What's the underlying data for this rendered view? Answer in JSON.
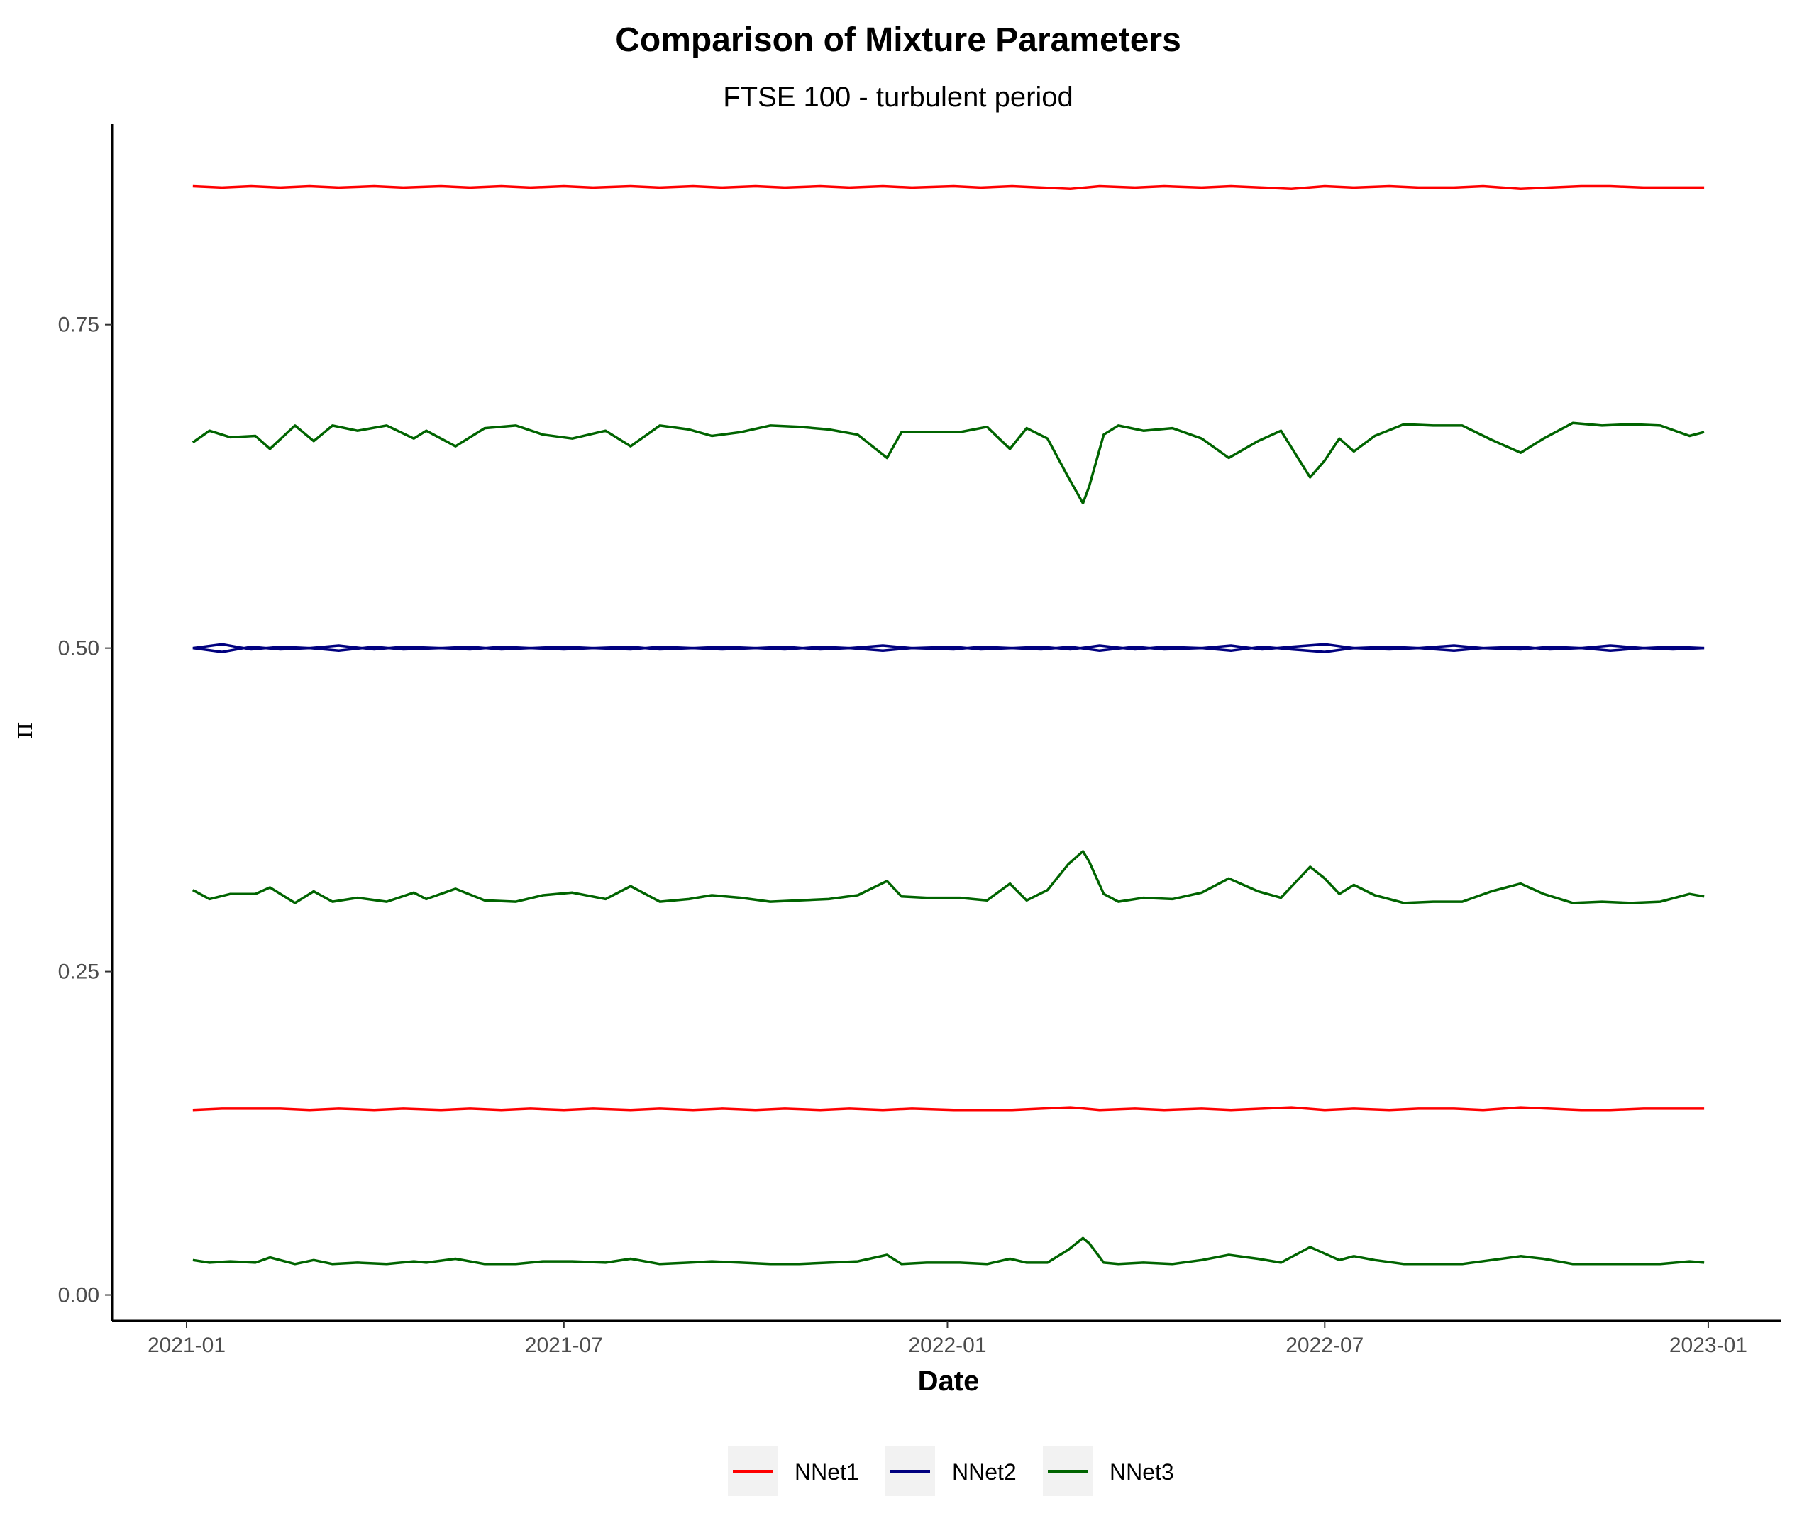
{
  "chart_data": {
    "type": "line",
    "title": "Comparison of Mixture Parameters",
    "subtitle": "FTSE 100 - turbulent period",
    "xlabel": "Date",
    "ylabel": "π",
    "xlim": [
      "2021-01-01",
      "2022-12-31"
    ],
    "ylim": [
      -0.02,
      0.905
    ],
    "x_ticks": [
      "2021-01",
      "2021-07",
      "2022-01",
      "2022-07",
      "2023-01"
    ],
    "y_ticks": [
      "0.00",
      "0.25",
      "0.50",
      "0.75"
    ],
    "grid": false,
    "legend_position": "bottom",
    "colors": {
      "NNet1": "#ff0000",
      "NNet2": "#00007f",
      "NNet3": "#006400"
    },
    "series": [
      {
        "name": "NNet1",
        "component": "upper",
        "x": [
          "2021-01-04",
          "2021-01-18",
          "2021-02-01",
          "2021-02-15",
          "2021-03-01",
          "2021-03-15",
          "2021-04-01",
          "2021-04-15",
          "2021-05-03",
          "2021-05-17",
          "2021-06-01",
          "2021-06-15",
          "2021-07-01",
          "2021-07-15",
          "2021-08-02",
          "2021-08-16",
          "2021-09-01",
          "2021-09-15",
          "2021-10-01",
          "2021-10-15",
          "2021-11-01",
          "2021-11-15",
          "2021-12-01",
          "2021-12-15",
          "2022-01-04",
          "2022-01-17",
          "2022-02-01",
          "2022-02-15",
          "2022-03-01",
          "2022-03-15",
          "2022-04-01",
          "2022-04-15",
          "2022-05-03",
          "2022-05-17",
          "2022-06-01",
          "2022-06-15",
          "2022-07-01",
          "2022-07-15",
          "2022-08-01",
          "2022-08-15",
          "2022-09-01",
          "2022-09-15",
          "2022-10-03",
          "2022-10-17",
          "2022-11-01",
          "2022-11-15",
          "2022-12-01",
          "2022-12-15",
          "2022-12-30"
        ],
        "y": [
          0.857,
          0.856,
          0.857,
          0.856,
          0.857,
          0.856,
          0.857,
          0.856,
          0.857,
          0.856,
          0.857,
          0.856,
          0.857,
          0.856,
          0.857,
          0.856,
          0.857,
          0.856,
          0.857,
          0.856,
          0.857,
          0.856,
          0.857,
          0.856,
          0.857,
          0.856,
          0.857,
          0.856,
          0.855,
          0.857,
          0.856,
          0.857,
          0.856,
          0.857,
          0.856,
          0.855,
          0.857,
          0.856,
          0.857,
          0.856,
          0.856,
          0.857,
          0.855,
          0.856,
          0.857,
          0.857,
          0.856,
          0.856,
          0.856
        ]
      },
      {
        "name": "NNet1",
        "component": "lower",
        "x": [
          "2021-01-04",
          "2021-01-18",
          "2021-02-01",
          "2021-02-15",
          "2021-03-01",
          "2021-03-15",
          "2021-04-01",
          "2021-04-15",
          "2021-05-03",
          "2021-05-17",
          "2021-06-01",
          "2021-06-15",
          "2021-07-01",
          "2021-07-15",
          "2021-08-02",
          "2021-08-16",
          "2021-09-01",
          "2021-09-15",
          "2021-10-01",
          "2021-10-15",
          "2021-11-01",
          "2021-11-15",
          "2021-12-01",
          "2021-12-15",
          "2022-01-04",
          "2022-01-17",
          "2022-02-01",
          "2022-02-15",
          "2022-03-01",
          "2022-03-15",
          "2022-04-01",
          "2022-04-15",
          "2022-05-03",
          "2022-05-17",
          "2022-06-01",
          "2022-06-15",
          "2022-07-01",
          "2022-07-15",
          "2022-08-01",
          "2022-08-15",
          "2022-09-01",
          "2022-09-15",
          "2022-10-03",
          "2022-10-17",
          "2022-11-01",
          "2022-11-15",
          "2022-12-01",
          "2022-12-15",
          "2022-12-30"
        ],
        "y": [
          0.143,
          0.144,
          0.144,
          0.144,
          0.143,
          0.144,
          0.143,
          0.144,
          0.143,
          0.144,
          0.143,
          0.144,
          0.143,
          0.144,
          0.143,
          0.144,
          0.143,
          0.144,
          0.143,
          0.144,
          0.143,
          0.144,
          0.143,
          0.144,
          0.143,
          0.143,
          0.143,
          0.144,
          0.145,
          0.143,
          0.144,
          0.143,
          0.144,
          0.143,
          0.144,
          0.145,
          0.143,
          0.144,
          0.143,
          0.144,
          0.144,
          0.143,
          0.145,
          0.144,
          0.143,
          0.143,
          0.144,
          0.144,
          0.144
        ]
      },
      {
        "name": "NNet2",
        "component": "a",
        "x": [
          "2021-01-04",
          "2021-01-18",
          "2021-02-01",
          "2021-02-15",
          "2021-03-01",
          "2021-03-15",
          "2021-04-01",
          "2021-04-15",
          "2021-05-03",
          "2021-05-17",
          "2021-06-01",
          "2021-06-15",
          "2021-07-01",
          "2021-07-15",
          "2021-08-02",
          "2021-08-16",
          "2021-09-01",
          "2021-09-15",
          "2021-10-01",
          "2021-10-15",
          "2021-11-01",
          "2021-11-15",
          "2021-12-01",
          "2021-12-15",
          "2022-01-04",
          "2022-01-17",
          "2022-02-01",
          "2022-02-15",
          "2022-03-01",
          "2022-03-15",
          "2022-04-01",
          "2022-04-15",
          "2022-05-03",
          "2022-05-17",
          "2022-06-01",
          "2022-06-15",
          "2022-07-01",
          "2022-07-15",
          "2022-08-01",
          "2022-08-15",
          "2022-09-01",
          "2022-09-15",
          "2022-10-03",
          "2022-10-17",
          "2022-11-01",
          "2022-11-15",
          "2022-12-01",
          "2022-12-15",
          "2022-12-30"
        ],
        "y": [
          0.5,
          0.503,
          0.499,
          0.501,
          0.5,
          0.502,
          0.499,
          0.501,
          0.5,
          0.501,
          0.499,
          0.5,
          0.501,
          0.5,
          0.499,
          0.501,
          0.5,
          0.501,
          0.5,
          0.499,
          0.501,
          0.5,
          0.502,
          0.5,
          0.501,
          0.499,
          0.5,
          0.501,
          0.499,
          0.502,
          0.499,
          0.501,
          0.5,
          0.502,
          0.499,
          0.501,
          0.503,
          0.5,
          0.501,
          0.5,
          0.502,
          0.5,
          0.499,
          0.501,
          0.5,
          0.502,
          0.5,
          0.501,
          0.5
        ]
      },
      {
        "name": "NNet2",
        "component": "b",
        "x": [
          "2021-01-04",
          "2021-01-18",
          "2021-02-01",
          "2021-02-15",
          "2021-03-01",
          "2021-03-15",
          "2021-04-01",
          "2021-04-15",
          "2021-05-03",
          "2021-05-17",
          "2021-06-01",
          "2021-06-15",
          "2021-07-01",
          "2021-07-15",
          "2021-08-02",
          "2021-08-16",
          "2021-09-01",
          "2021-09-15",
          "2021-10-01",
          "2021-10-15",
          "2021-11-01",
          "2021-11-15",
          "2021-12-01",
          "2021-12-15",
          "2022-01-04",
          "2022-01-17",
          "2022-02-01",
          "2022-02-15",
          "2022-03-01",
          "2022-03-15",
          "2022-04-01",
          "2022-04-15",
          "2022-05-03",
          "2022-05-17",
          "2022-06-01",
          "2022-06-15",
          "2022-07-01",
          "2022-07-15",
          "2022-08-01",
          "2022-08-15",
          "2022-09-01",
          "2022-09-15",
          "2022-10-03",
          "2022-10-17",
          "2022-11-01",
          "2022-11-15",
          "2022-12-01",
          "2022-12-15",
          "2022-12-30"
        ],
        "y": [
          0.5,
          0.497,
          0.501,
          0.499,
          0.5,
          0.498,
          0.501,
          0.499,
          0.5,
          0.499,
          0.501,
          0.5,
          0.499,
          0.5,
          0.501,
          0.499,
          0.5,
          0.499,
          0.5,
          0.501,
          0.499,
          0.5,
          0.498,
          0.5,
          0.499,
          0.501,
          0.5,
          0.499,
          0.501,
          0.498,
          0.501,
          0.499,
          0.5,
          0.498,
          0.501,
          0.499,
          0.497,
          0.5,
          0.499,
          0.5,
          0.498,
          0.5,
          0.501,
          0.499,
          0.5,
          0.498,
          0.5,
          0.499,
          0.5
        ]
      },
      {
        "name": "NNet3",
        "component": "upper",
        "x": [
          "2021-01-04",
          "2021-01-12",
          "2021-01-22",
          "2021-02-03",
          "2021-02-10",
          "2021-02-22",
          "2021-03-03",
          "2021-03-12",
          "2021-03-24",
          "2021-04-07",
          "2021-04-20",
          "2021-04-26",
          "2021-05-10",
          "2021-05-24",
          "2021-06-08",
          "2021-06-21",
          "2021-07-05",
          "2021-07-21",
          "2021-08-02",
          "2021-08-16",
          "2021-08-30",
          "2021-09-10",
          "2021-09-24",
          "2021-10-08",
          "2021-10-22",
          "2021-11-05",
          "2021-11-19",
          "2021-12-03",
          "2021-12-10",
          "2021-12-22",
          "2022-01-07",
          "2022-01-20",
          "2022-01-31",
          "2022-02-08",
          "2022-02-18",
          "2022-02-28",
          "2022-03-07",
          "2022-03-10",
          "2022-03-17",
          "2022-03-24",
          "2022-04-05",
          "2022-04-19",
          "2022-05-03",
          "2022-05-16",
          "2022-05-30",
          "2022-06-10",
          "2022-06-24",
          "2022-07-01",
          "2022-07-08",
          "2022-07-15",
          "2022-07-25",
          "2022-08-08",
          "2022-08-22",
          "2022-09-05",
          "2022-09-19",
          "2022-10-03",
          "2022-10-14",
          "2022-10-28",
          "2022-11-11",
          "2022-11-25",
          "2022-12-09",
          "2022-12-23",
          "2022-12-30"
        ],
        "y": [
          0.659,
          0.668,
          0.663,
          0.664,
          0.654,
          0.672,
          0.66,
          0.672,
          0.668,
          0.672,
          0.662,
          0.668,
          0.656,
          0.67,
          0.672,
          0.665,
          0.662,
          0.668,
          0.656,
          0.672,
          0.669,
          0.664,
          0.667,
          0.672,
          0.671,
          0.669,
          0.665,
          0.647,
          0.667,
          0.667,
          0.667,
          0.671,
          0.654,
          0.67,
          0.662,
          0.632,
          0.612,
          0.625,
          0.665,
          0.672,
          0.668,
          0.67,
          0.662,
          0.647,
          0.66,
          0.668,
          0.632,
          0.645,
          0.662,
          0.652,
          0.664,
          0.673,
          0.672,
          0.672,
          0.661,
          0.651,
          0.662,
          0.674,
          0.672,
          0.673,
          0.672,
          0.664,
          0.667
        ]
      },
      {
        "name": "NNet3",
        "component": "middle",
        "x": [
          "2021-01-04",
          "2021-01-12",
          "2021-01-22",
          "2021-02-03",
          "2021-02-10",
          "2021-02-22",
          "2021-03-03",
          "2021-03-12",
          "2021-03-24",
          "2021-04-07",
          "2021-04-20",
          "2021-04-26",
          "2021-05-10",
          "2021-05-24",
          "2021-06-08",
          "2021-06-21",
          "2021-07-05",
          "2021-07-21",
          "2021-08-02",
          "2021-08-16",
          "2021-08-30",
          "2021-09-10",
          "2021-09-24",
          "2021-10-08",
          "2021-10-22",
          "2021-11-05",
          "2021-11-19",
          "2021-12-03",
          "2021-12-10",
          "2021-12-22",
          "2022-01-07",
          "2022-01-20",
          "2022-01-31",
          "2022-02-08",
          "2022-02-18",
          "2022-02-28",
          "2022-03-07",
          "2022-03-10",
          "2022-03-17",
          "2022-03-24",
          "2022-04-05",
          "2022-04-19",
          "2022-05-03",
          "2022-05-16",
          "2022-05-30",
          "2022-06-10",
          "2022-06-24",
          "2022-07-01",
          "2022-07-08",
          "2022-07-15",
          "2022-07-25",
          "2022-08-08",
          "2022-08-22",
          "2022-09-05",
          "2022-09-19",
          "2022-10-03",
          "2022-10-14",
          "2022-10-28",
          "2022-11-11",
          "2022-11-25",
          "2022-12-09",
          "2022-12-23",
          "2022-12-30"
        ],
        "y": [
          0.313,
          0.306,
          0.31,
          0.31,
          0.315,
          0.303,
          0.312,
          0.304,
          0.307,
          0.304,
          0.311,
          0.306,
          0.314,
          0.305,
          0.304,
          0.309,
          0.311,
          0.306,
          0.316,
          0.304,
          0.306,
          0.309,
          0.307,
          0.304,
          0.305,
          0.306,
          0.309,
          0.32,
          0.308,
          0.307,
          0.307,
          0.305,
          0.318,
          0.305,
          0.313,
          0.333,
          0.343,
          0.335,
          0.31,
          0.304,
          0.307,
          0.306,
          0.311,
          0.322,
          0.312,
          0.307,
          0.331,
          0.322,
          0.31,
          0.317,
          0.309,
          0.303,
          0.304,
          0.304,
          0.312,
          0.318,
          0.31,
          0.303,
          0.304,
          0.303,
          0.304,
          0.31,
          0.308
        ]
      },
      {
        "name": "NNet3",
        "component": "lower",
        "x": [
          "2021-01-04",
          "2021-01-12",
          "2021-01-22",
          "2021-02-03",
          "2021-02-10",
          "2021-02-22",
          "2021-03-03",
          "2021-03-12",
          "2021-03-24",
          "2021-04-07",
          "2021-04-20",
          "2021-04-26",
          "2021-05-10",
          "2021-05-24",
          "2021-06-08",
          "2021-06-21",
          "2021-07-05",
          "2021-07-21",
          "2021-08-02",
          "2021-08-16",
          "2021-08-30",
          "2021-09-10",
          "2021-09-24",
          "2021-10-08",
          "2021-10-22",
          "2021-11-05",
          "2021-11-19",
          "2021-12-03",
          "2021-12-10",
          "2021-12-22",
          "2022-01-07",
          "2022-01-20",
          "2022-01-31",
          "2022-02-08",
          "2022-02-18",
          "2022-02-28",
          "2022-03-07",
          "2022-03-10",
          "2022-03-17",
          "2022-03-24",
          "2022-04-05",
          "2022-04-19",
          "2022-05-03",
          "2022-05-16",
          "2022-05-30",
          "2022-06-10",
          "2022-06-24",
          "2022-07-01",
          "2022-07-08",
          "2022-07-15",
          "2022-07-25",
          "2022-08-08",
          "2022-08-22",
          "2022-09-05",
          "2022-09-19",
          "2022-10-03",
          "2022-10-14",
          "2022-10-28",
          "2022-11-11",
          "2022-11-25",
          "2022-12-09",
          "2022-12-23",
          "2022-12-30"
        ],
        "y": [
          0.027,
          0.025,
          0.026,
          0.025,
          0.029,
          0.024,
          0.027,
          0.024,
          0.025,
          0.024,
          0.026,
          0.025,
          0.028,
          0.024,
          0.024,
          0.026,
          0.026,
          0.025,
          0.028,
          0.024,
          0.025,
          0.026,
          0.025,
          0.024,
          0.024,
          0.025,
          0.026,
          0.031,
          0.024,
          0.025,
          0.025,
          0.024,
          0.028,
          0.025,
          0.025,
          0.035,
          0.044,
          0.04,
          0.025,
          0.024,
          0.025,
          0.024,
          0.027,
          0.031,
          0.028,
          0.025,
          0.037,
          0.032,
          0.027,
          0.03,
          0.027,
          0.024,
          0.024,
          0.024,
          0.027,
          0.03,
          0.028,
          0.024,
          0.024,
          0.024,
          0.024,
          0.026,
          0.025
        ]
      }
    ]
  }
}
